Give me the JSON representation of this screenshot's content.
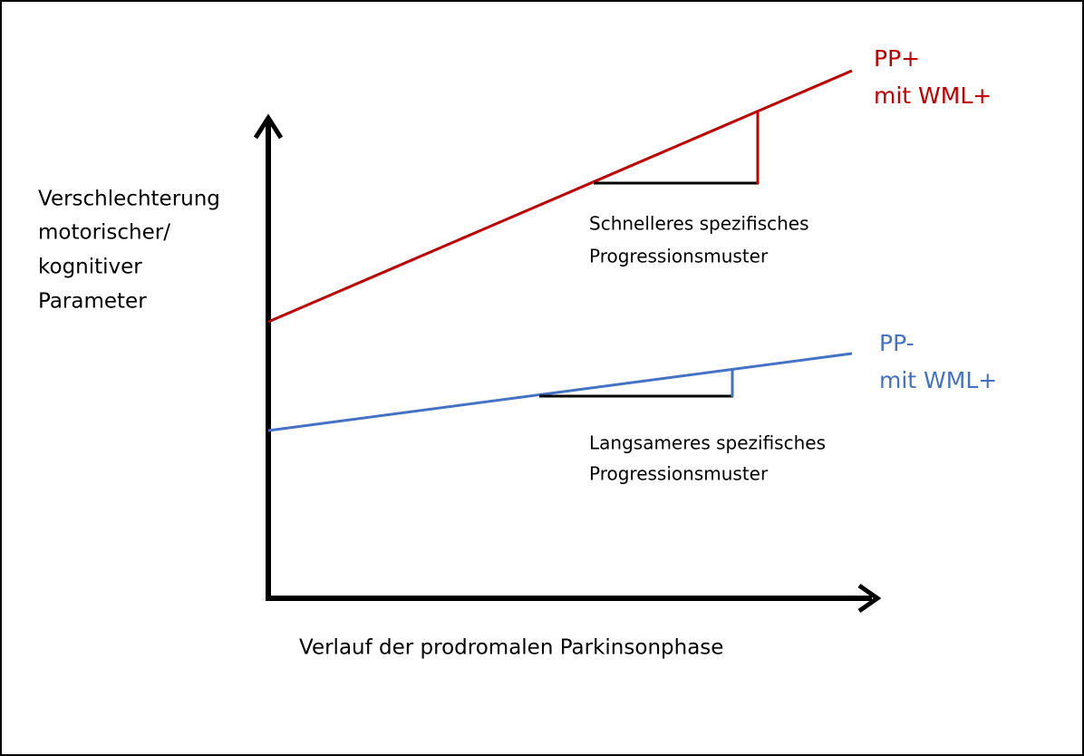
{
  "y_axis_label": [
    "Verschlechterung",
    "motorischer/",
    "kognitiver",
    "Parameter"
  ],
  "x_axis_label": "Verlauf der prodromalen Parkinsonphase",
  "lines": [
    {
      "label": [
        "PP+",
        "mit WML+"
      ],
      "annotation": [
        "Schnelleres spezifisches",
        "Progressionsmuster"
      ]
    },
    {
      "label": [
        "PP-",
        "mit WML+"
      ],
      "annotation": [
        "Langsameres spezifisches",
        "Progressionsmuster"
      ]
    }
  ]
}
